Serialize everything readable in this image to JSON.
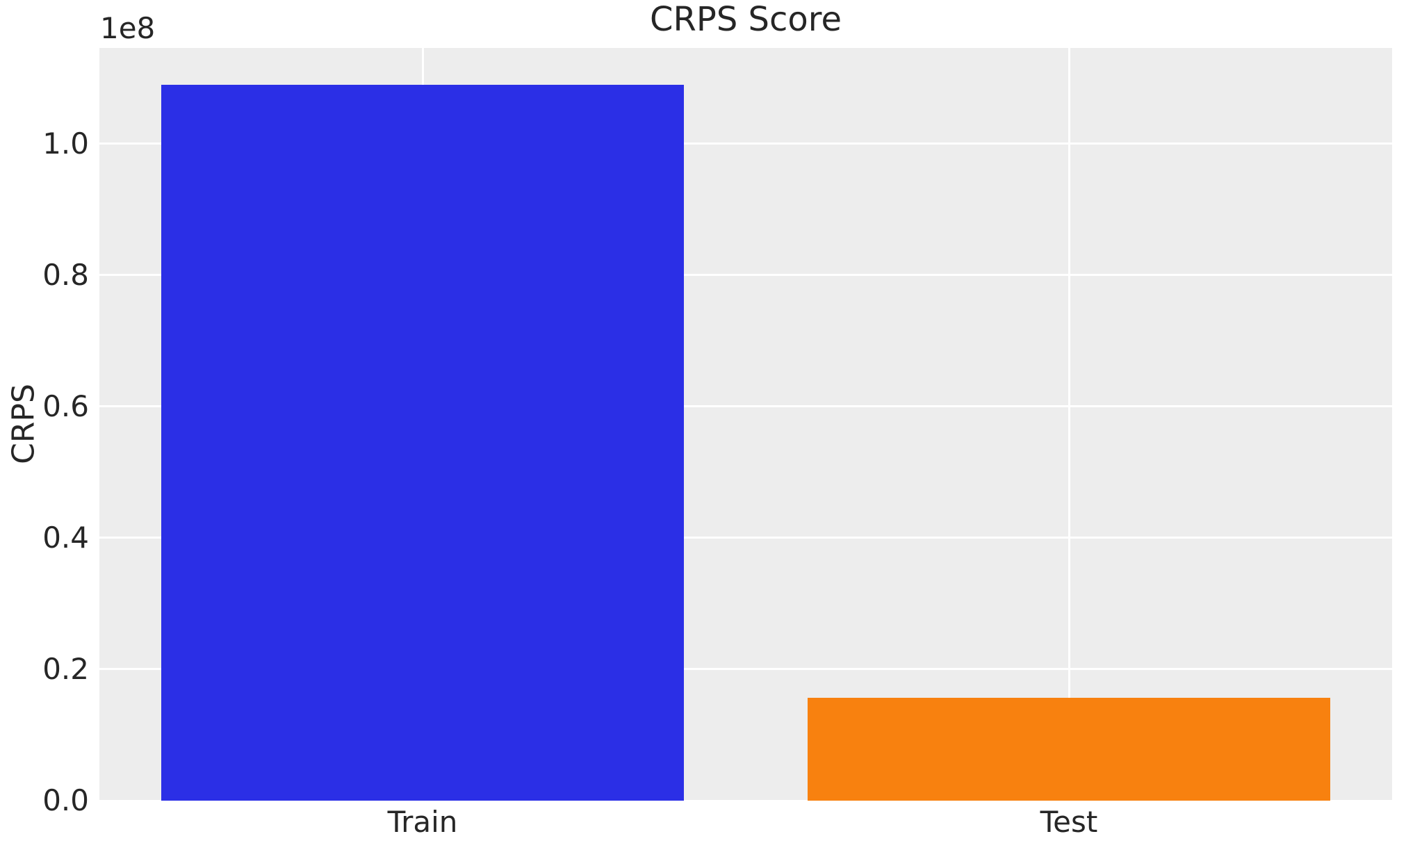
{
  "chart_data": {
    "type": "bar",
    "title": "CRPS Score",
    "xlabel": "",
    "ylabel": "CRPS",
    "offset_label": "1e8",
    "categories": [
      "Train",
      "Test"
    ],
    "values": [
      109000000,
      15700000
    ],
    "bar_colors": [
      "#2b2fe6",
      "#f8810f"
    ],
    "yticks": [
      {
        "label": "0.0",
        "value": 0
      },
      {
        "label": "0.2",
        "value": 20000000
      },
      {
        "label": "0.4",
        "value": 40000000
      },
      {
        "label": "0.6",
        "value": 60000000
      },
      {
        "label": "0.8",
        "value": 80000000
      },
      {
        "label": "1.0",
        "value": 100000000
      }
    ],
    "ylim": [
      0,
      114600000
    ],
    "grid": true,
    "legend": false,
    "plot_bg_color": "#ededed",
    "grid_color": "#ffffff",
    "text_color": "#262626",
    "bar_width_fraction": 0.404
  }
}
